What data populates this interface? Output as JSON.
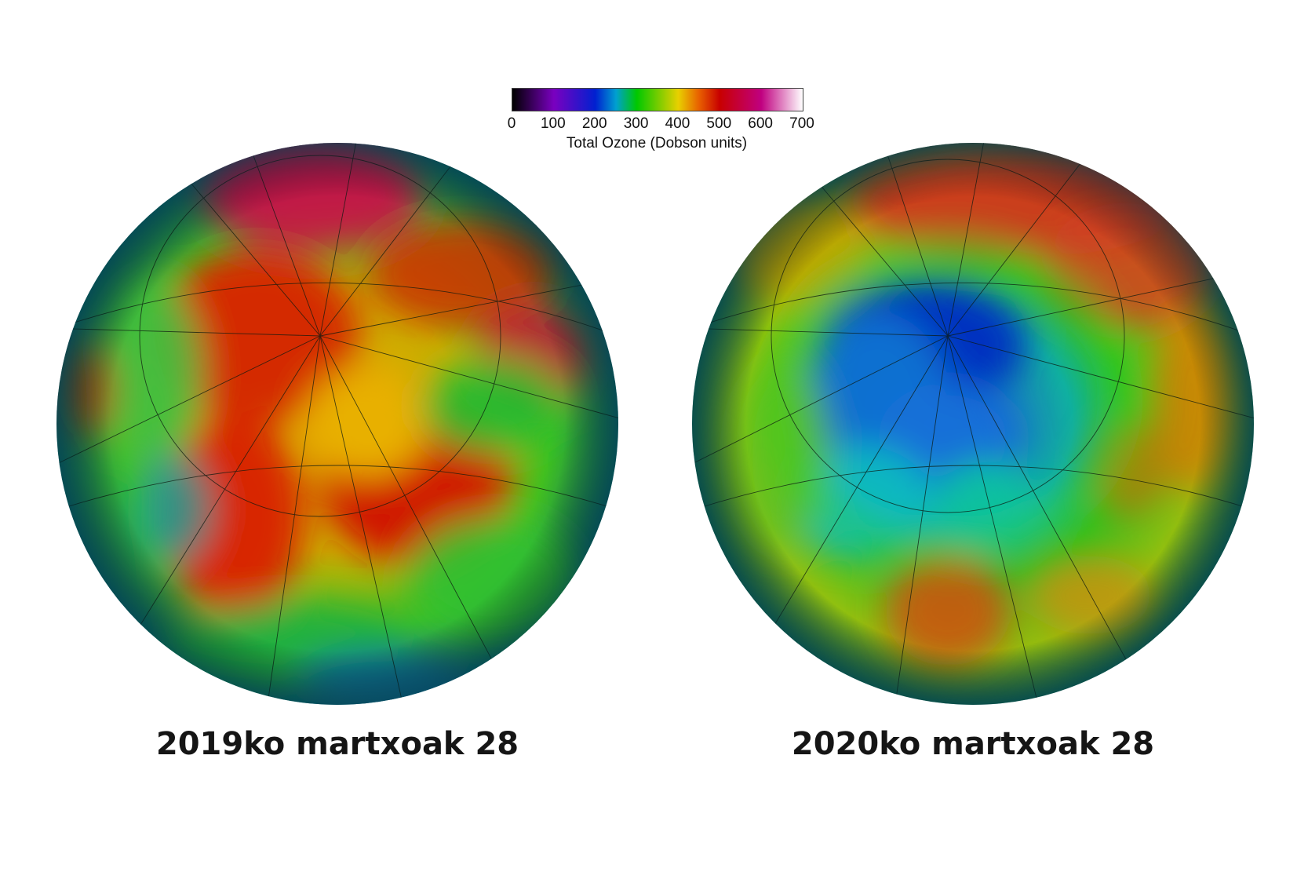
{
  "colorbar": {
    "title": "Total Ozone (Dobson units)",
    "ticks": [
      "0",
      "100",
      "200",
      "300",
      "400",
      "500",
      "600",
      "700"
    ],
    "range": [
      0,
      700
    ],
    "stops": [
      {
        "value": 0,
        "color": "#000000"
      },
      {
        "value": 100,
        "color": "#7a00c0"
      },
      {
        "value": 200,
        "color": "#0020d0"
      },
      {
        "value": 250,
        "color": "#00a0d0"
      },
      {
        "value": 300,
        "color": "#00c800"
      },
      {
        "value": 400,
        "color": "#e8d000"
      },
      {
        "value": 450,
        "color": "#e86000"
      },
      {
        "value": 500,
        "color": "#c80000"
      },
      {
        "value": 600,
        "color": "#c00080"
      },
      {
        "value": 700,
        "color": "#ffffff"
      }
    ]
  },
  "maps": [
    {
      "caption": "2019ko martxoak 28",
      "pattern": "high-ozone"
    },
    {
      "caption": "2020ko martxoak 28",
      "pattern": "low-ozone-hole"
    }
  ]
}
